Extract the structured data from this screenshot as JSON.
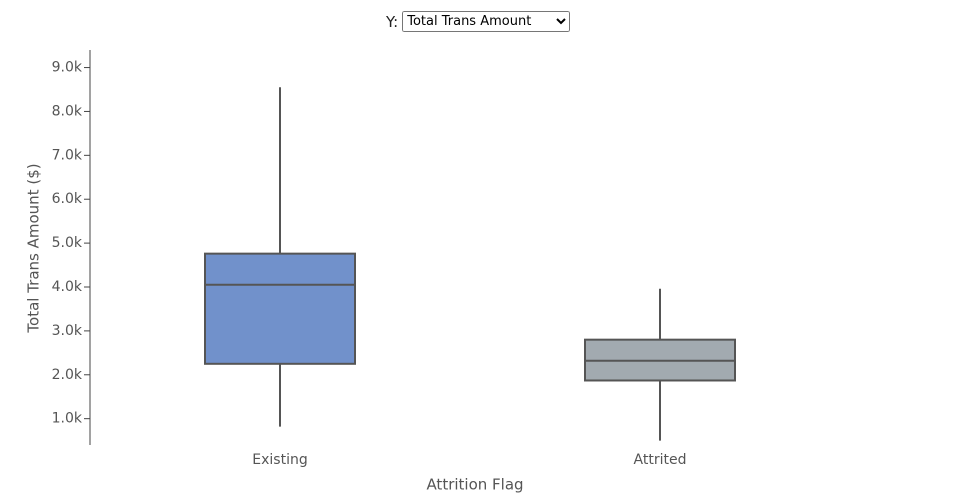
{
  "controls": {
    "label": "Y:",
    "selected": "Total Trans Amount"
  },
  "chart_data": {
    "type": "box",
    "x_label": "Attrition Flag",
    "y_label": "Total Trans Amount ($)",
    "categories": [
      "Existing",
      "Attrited"
    ],
    "boxes": [
      {
        "color": "#7191cb",
        "min": 820,
        "q1": 2250,
        "median": 4050,
        "q3": 4760,
        "max": 8550
      },
      {
        "color": "#a2aab0",
        "min": 500,
        "q1": 1870,
        "median": 2320,
        "q3": 2800,
        "max": 3960
      }
    ],
    "ylim": [
      400,
      9400
    ],
    "yticks": [
      {
        "value": 1000,
        "label": "1.0k"
      },
      {
        "value": 2000,
        "label": "2.0k"
      },
      {
        "value": 3000,
        "label": "3.0k"
      },
      {
        "value": 4000,
        "label": "4.0k"
      },
      {
        "value": 5000,
        "label": "5.0k"
      },
      {
        "value": 6000,
        "label": "6.0k"
      },
      {
        "value": 7000,
        "label": "7.0k"
      },
      {
        "value": 8000,
        "label": "8.0k"
      },
      {
        "value": 9000,
        "label": "9.0k"
      }
    ]
  }
}
